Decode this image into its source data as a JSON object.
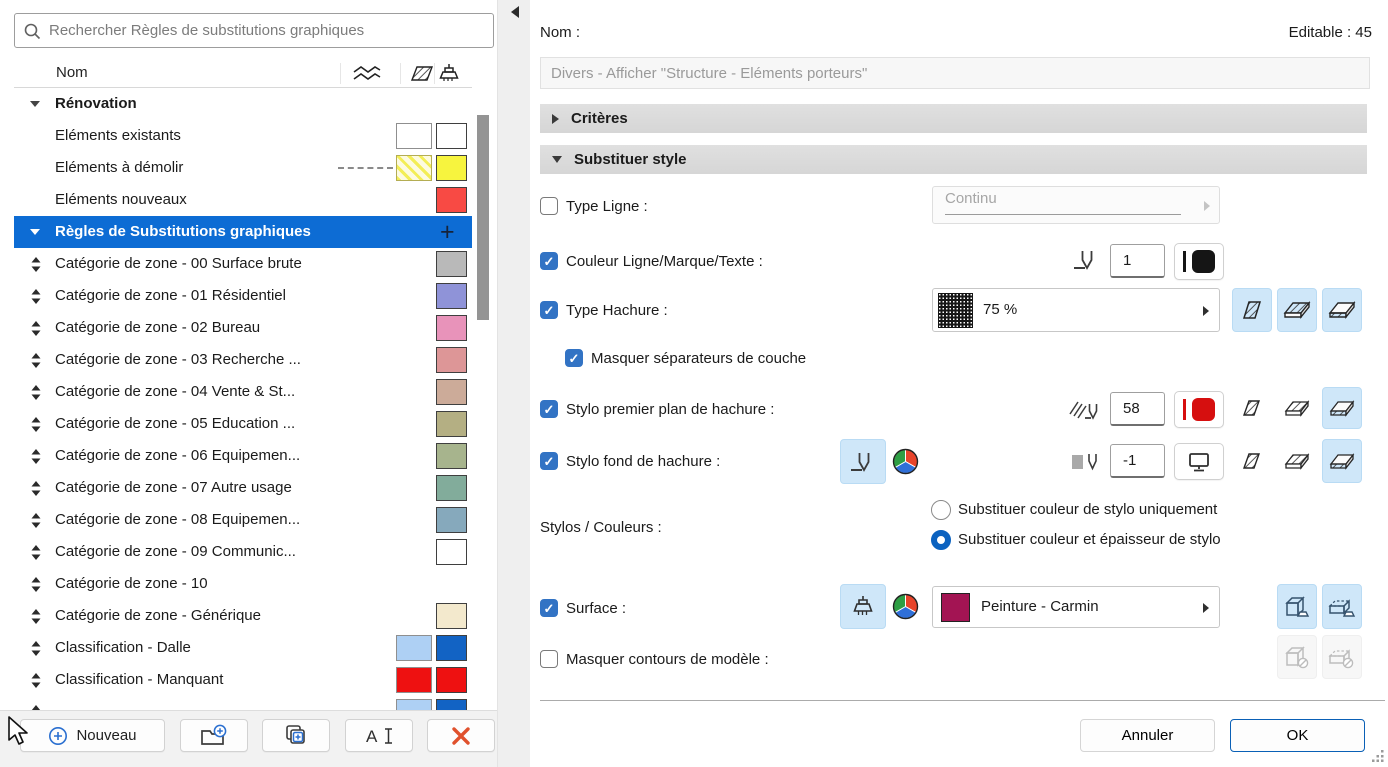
{
  "theme": {
    "selection": "#0d6cd4",
    "accent": "#0a60b6",
    "toggle_bg": "#cfe7f9"
  },
  "left_panel": {
    "search_placeholder": "Rechercher Règles de substitutions graphiques",
    "header": {
      "name": "Nom",
      "icons": [
        "line-type-icon",
        "fill-type-icon",
        "surface-icon"
      ]
    },
    "rows": [
      {
        "kind": "group",
        "label": "Rénovation"
      },
      {
        "kind": "item",
        "label": "Eléments existants",
        "fill": "#ffffff",
        "surface": "#ffffff"
      },
      {
        "kind": "item",
        "label": "Eléments à démolir",
        "line": "dashed",
        "fill": "hatch",
        "surface": "#f7f43e"
      },
      {
        "kind": "item",
        "label": "Eléments nouveaux",
        "surface": "#f84a44"
      },
      {
        "kind": "selected",
        "label": "Règles de Substitutions graphiques",
        "plus": "+"
      },
      {
        "kind": "zone",
        "label": "Catégorie de zone - 00 Surface brute",
        "surface": "#b9b9b9"
      },
      {
        "kind": "zone",
        "label": "Catégorie de zone - 01 Résidentiel",
        "surface": "#8f93d8"
      },
      {
        "kind": "zone",
        "label": "Catégorie de zone - 02 Bureau",
        "surface": "#e893ba"
      },
      {
        "kind": "zone",
        "label": "Catégorie de zone - 03 Recherche ...",
        "surface": "#dd9697"
      },
      {
        "kind": "zone",
        "label": "Catégorie de zone - 04 Vente & St...",
        "surface": "#ccab99"
      },
      {
        "kind": "zone",
        "label": "Catégorie de zone - 05 Education ...",
        "surface": "#b4af83"
      },
      {
        "kind": "zone",
        "label": "Catégorie de zone - 06 Equipemen...",
        "surface": "#a7b48d"
      },
      {
        "kind": "zone",
        "label": "Catégorie de zone - 07 Autre usage",
        "surface": "#82ac9b"
      },
      {
        "kind": "zone",
        "label": "Catégorie de zone - 08 Equipemen...",
        "surface": "#86a9bc"
      },
      {
        "kind": "zone",
        "label": "Catégorie de zone - 09 Communic...",
        "surface": "#ffffff"
      },
      {
        "kind": "zone",
        "label": "Catégorie de zone - 10"
      },
      {
        "kind": "zone",
        "label": "Catégorie de zone - Générique",
        "surface": "#f3e9cd"
      },
      {
        "kind": "zone",
        "label": "Classification - Dalle",
        "fill": "#aed0f4",
        "surface": "#1263c4"
      },
      {
        "kind": "zone",
        "label": "Classification - Manquant",
        "fill": "#ee1111",
        "surface": "#ee1111"
      },
      {
        "kind": "zone",
        "label": "",
        "fill": "#aed0f4",
        "surface": "#1263c4"
      }
    ],
    "footer": {
      "new_label": "Nouveau"
    }
  },
  "right_panel": {
    "name_label": "Nom :",
    "editable_label": "Editable : 45",
    "name_value": "Divers - Afficher \"Structure - Eléments porteurs\"",
    "criteria_label": "Critères",
    "override_label": "Substituer style",
    "line_type": {
      "label": "Type Ligne :",
      "checked": false,
      "value": "Continu"
    },
    "line_color": {
      "label": "Couleur Ligne/Marque/Texte :",
      "checked": true,
      "pen": "1",
      "color": "#151515"
    },
    "fill_type": {
      "label": "Type Hachure :",
      "checked": true,
      "value": "75 %"
    },
    "hide_separators": {
      "label": "Masquer séparateurs de couche",
      "checked": true
    },
    "fill_fg": {
      "label": "Stylo premier plan de hachure :",
      "checked": true,
      "pen": "58",
      "color": "#d60f0f"
    },
    "fill_bg": {
      "label": "Stylo fond de hachure :",
      "checked": true,
      "pen": "-1"
    },
    "pens_colors": {
      "label": "Stylos / Couleurs :",
      "options": [
        "Substituer couleur de stylo uniquement",
        "Substituer couleur et épaisseur de stylo"
      ],
      "selected": 1
    },
    "surface": {
      "label": "Surface :",
      "checked": true,
      "value": "Peinture - Carmin",
      "color": "#a31453"
    },
    "hide_contours": {
      "label": "Masquer contours de modèle :",
      "checked": false
    },
    "cancel_label": "Annuler",
    "ok_label": "OK"
  }
}
